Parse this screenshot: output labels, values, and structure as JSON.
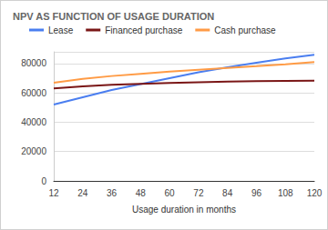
{
  "chart_data": {
    "type": "line",
    "title": "NPV AS FUNCTION OF USAGE DURATION",
    "x_label": "Usage duration in months",
    "x": [
      12,
      24,
      36,
      48,
      60,
      72,
      84,
      96,
      108,
      120
    ],
    "xlim": [
      12,
      120
    ],
    "xticks": [
      12,
      24,
      36,
      48,
      60,
      72,
      84,
      96,
      108,
      120
    ],
    "ylim": [
      0,
      88000
    ],
    "yticks": [
      0,
      20000,
      40000,
      60000,
      80000
    ],
    "grid": true,
    "legend": "top",
    "series": [
      {
        "name": "Lease",
        "color": "#4a7ef0",
        "values": [
          52000,
          57000,
          62000,
          66000,
          70000,
          74000,
          77500,
          80500,
          83500,
          86000
        ]
      },
      {
        "name": "Financed purchase",
        "color": "#7a1616",
        "values": [
          63000,
          64500,
          65500,
          66200,
          66800,
          67300,
          67700,
          68000,
          68200,
          68300
        ]
      },
      {
        "name": "Cash purchase",
        "color": "#ff9b45",
        "values": [
          67000,
          69500,
          71500,
          73000,
          74500,
          75800,
          77000,
          78200,
          79500,
          81000
        ]
      }
    ]
  }
}
